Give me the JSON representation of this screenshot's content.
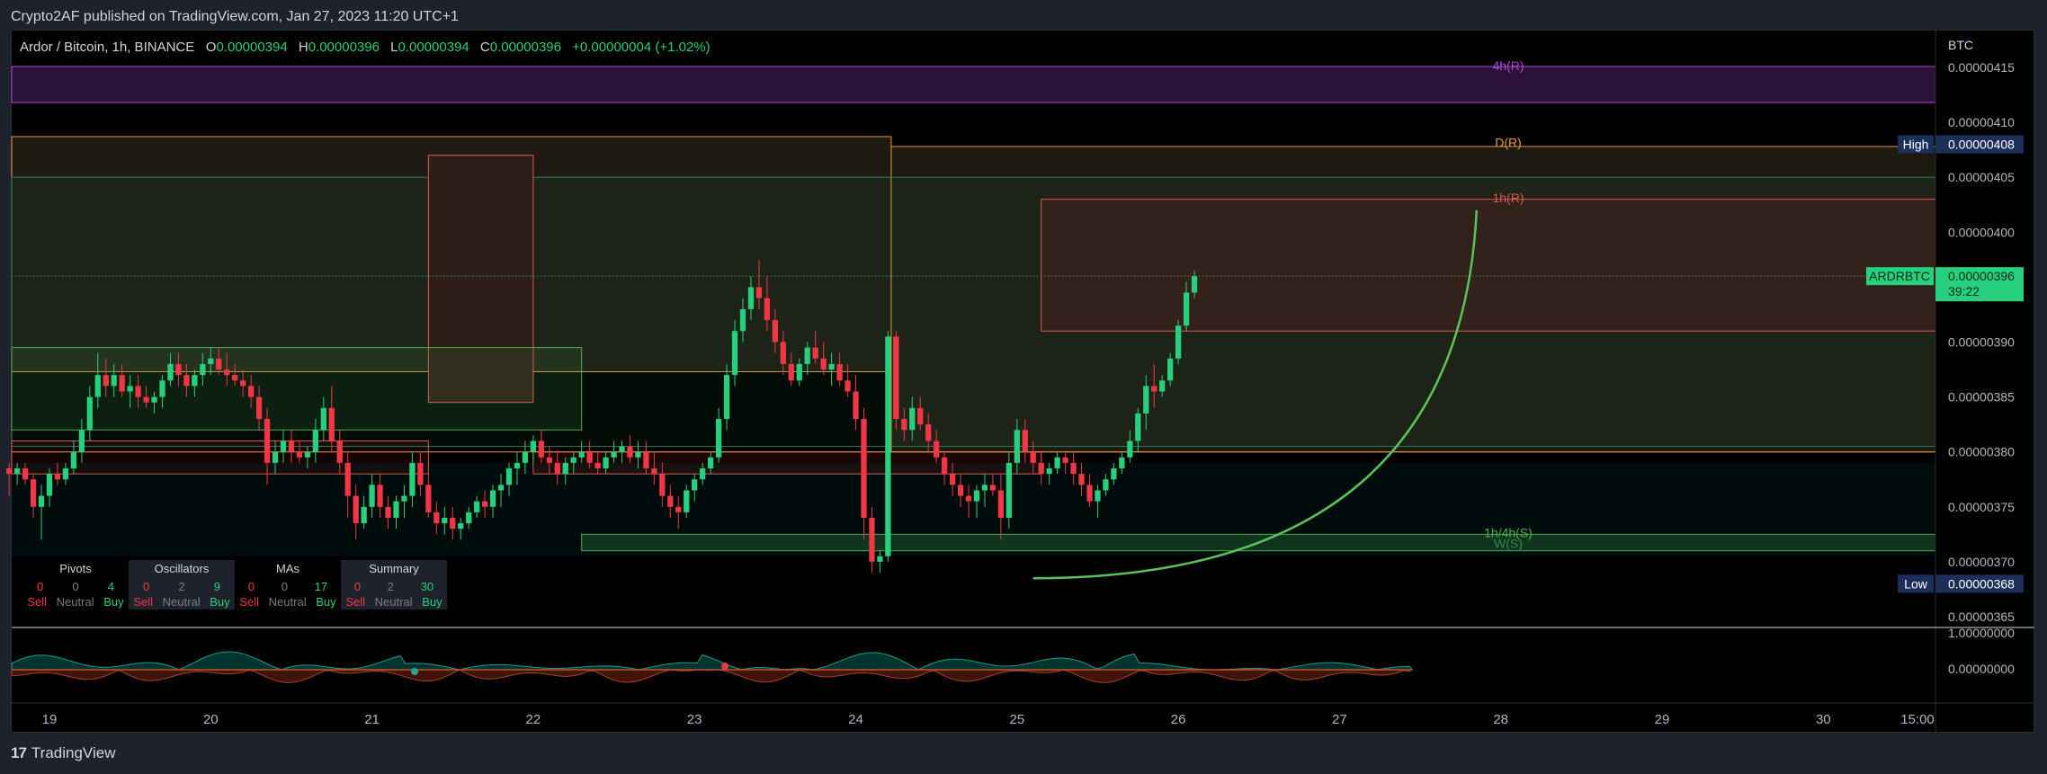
{
  "header": {
    "published": "Crypto2AF published on TradingView.com, Jan 27, 2023 11:20 UTC+1"
  },
  "legend": {
    "symbol": "Ardor / Bitcoin, 1h, BINANCE",
    "o_label": "O",
    "o": "0.00000394",
    "h_label": "H",
    "h": "0.00000396",
    "l_label": "L",
    "l": "0.00000394",
    "c_label": "C",
    "c": "0.00000396",
    "change": "+0.00000004 (+1.02%)"
  },
  "price_axis": {
    "currency": "BTC",
    "ticks": [
      "0.00000415",
      "0.00000410",
      "0.00000405",
      "0.00000400",
      "0.00000390",
      "0.00000385",
      "0.00000380",
      "0.00000375",
      "0.00000370",
      "0.00000365"
    ],
    "high_label": "High",
    "high_value": "0.00000408",
    "low_label": "Low",
    "low_value": "0.00000368",
    "last_symbol": "ARDRBTC",
    "last_value": "0.00000396",
    "countdown": "39:22"
  },
  "osc_axis": {
    "ticks": [
      "1.00000000",
      "0.00000000"
    ]
  },
  "time_axis": {
    "ticks": [
      "19",
      "20",
      "21",
      "22",
      "23",
      "24",
      "25",
      "26",
      "27",
      "28",
      "29",
      "30",
      "15:00"
    ]
  },
  "levels": {
    "r4h": "4h(R)",
    "rd": "D(R)",
    "r1h": "1h(R)",
    "s1h4h": "1h/4h(S)",
    "sw": "W(S)"
  },
  "ta_summary": [
    {
      "title": "Pivots",
      "sell": "0",
      "neutral": "0",
      "buy": "4"
    },
    {
      "title": "Oscillators",
      "sell": "0",
      "neutral": "2",
      "buy": "9"
    },
    {
      "title": "MAs",
      "sell": "0",
      "neutral": "0",
      "buy": "17"
    },
    {
      "title": "Summary",
      "sell": "0",
      "neutral": "2",
      "buy": "30"
    }
  ],
  "ta_labels": {
    "sell": "Sell",
    "neutral": "Neutral",
    "buy": "Buy"
  },
  "footer": {
    "brand": "TradingView"
  },
  "colors": {
    "up": "#26d07c",
    "down": "#f23645",
    "resistance_4h": "#b04ad8",
    "resistance_d": "#e59a3c",
    "resistance_1h": "#e2584e",
    "support": "#4caf50"
  },
  "chart_data": {
    "type": "candlestick",
    "interval": "1h",
    "x_start": 18.75,
    "ylim": [
      3.625e-06,
      4.175e-06
    ],
    "candles": [
      [
        3.785,
        3.79,
        3.76,
        3.78
      ],
      [
        3.78,
        3.79,
        3.77,
        3.785
      ],
      [
        3.785,
        3.79,
        3.77,
        3.775
      ],
      [
        3.775,
        3.78,
        3.74,
        3.75
      ],
      [
        3.75,
        3.77,
        3.72,
        3.76
      ],
      [
        3.76,
        3.785,
        3.75,
        3.78
      ],
      [
        3.78,
        3.79,
        3.77,
        3.775
      ],
      [
        3.775,
        3.79,
        3.77,
        3.785
      ],
      [
        3.785,
        3.81,
        3.78,
        3.8
      ],
      [
        3.8,
        3.83,
        3.79,
        3.82
      ],
      [
        3.82,
        3.86,
        3.81,
        3.85
      ],
      [
        3.85,
        3.89,
        3.84,
        3.87
      ],
      [
        3.87,
        3.885,
        3.85,
        3.86
      ],
      [
        3.86,
        3.88,
        3.85,
        3.87
      ],
      [
        3.87,
        3.88,
        3.85,
        3.855
      ],
      [
        3.855,
        3.87,
        3.84,
        3.86
      ],
      [
        3.86,
        3.87,
        3.84,
        3.85
      ],
      [
        3.85,
        3.86,
        3.84,
        3.845
      ],
      [
        3.845,
        3.855,
        3.835,
        3.85
      ],
      [
        3.85,
        3.87,
        3.84,
        3.865
      ],
      [
        3.865,
        3.89,
        3.86,
        3.88
      ],
      [
        3.88,
        3.89,
        3.86,
        3.87
      ],
      [
        3.87,
        3.88,
        3.85,
        3.86
      ],
      [
        3.86,
        3.875,
        3.85,
        3.87
      ],
      [
        3.87,
        3.89,
        3.86,
        3.88
      ],
      [
        3.88,
        3.895,
        3.87,
        3.885
      ],
      [
        3.885,
        3.895,
        3.87,
        3.875
      ],
      [
        3.875,
        3.89,
        3.86,
        3.87
      ],
      [
        3.87,
        3.88,
        3.86,
        3.865
      ],
      [
        3.865,
        3.875,
        3.85,
        3.86
      ],
      [
        3.86,
        3.87,
        3.84,
        3.85
      ],
      [
        3.85,
        3.86,
        3.82,
        3.83
      ],
      [
        3.83,
        3.84,
        3.77,
        3.79
      ],
      [
        3.79,
        3.81,
        3.78,
        3.8
      ],
      [
        3.8,
        3.82,
        3.79,
        3.81
      ],
      [
        3.81,
        3.82,
        3.79,
        3.8
      ],
      [
        3.8,
        3.81,
        3.79,
        3.795
      ],
      [
        3.795,
        3.805,
        3.785,
        3.8
      ],
      [
        3.8,
        3.83,
        3.79,
        3.82
      ],
      [
        3.82,
        3.85,
        3.81,
        3.84
      ],
      [
        3.84,
        3.86,
        3.8,
        3.81
      ],
      [
        3.81,
        3.82,
        3.78,
        3.79
      ],
      [
        3.79,
        3.8,
        3.74,
        3.76
      ],
      [
        3.76,
        3.77,
        3.72,
        3.735
      ],
      [
        3.735,
        3.76,
        3.73,
        3.75
      ],
      [
        3.75,
        3.78,
        3.74,
        3.77
      ],
      [
        3.77,
        3.78,
        3.74,
        3.75
      ],
      [
        3.75,
        3.76,
        3.73,
        3.74
      ],
      [
        3.74,
        3.76,
        3.73,
        3.755
      ],
      [
        3.755,
        3.77,
        3.74,
        3.76
      ],
      [
        3.76,
        3.8,
        3.75,
        3.79
      ],
      [
        3.79,
        3.8,
        3.76,
        3.77
      ],
      [
        3.77,
        3.78,
        3.74,
        3.745
      ],
      [
        3.745,
        3.755,
        3.725,
        3.735
      ],
      [
        3.735,
        3.75,
        3.725,
        3.74
      ],
      [
        3.74,
        3.75,
        3.72,
        3.73
      ],
      [
        3.73,
        3.74,
        3.72,
        3.735
      ],
      [
        3.735,
        3.75,
        3.73,
        3.745
      ],
      [
        3.745,
        3.76,
        3.74,
        3.755
      ],
      [
        3.755,
        3.765,
        3.74,
        3.75
      ],
      [
        3.75,
        3.77,
        3.74,
        3.765
      ],
      [
        3.765,
        3.78,
        3.75,
        3.77
      ],
      [
        3.77,
        3.79,
        3.76,
        3.785
      ],
      [
        3.785,
        3.8,
        3.77,
        3.79
      ],
      [
        3.79,
        3.81,
        3.78,
        3.8
      ],
      [
        3.8,
        3.815,
        3.79,
        3.81
      ],
      [
        3.81,
        3.82,
        3.79,
        3.795
      ],
      [
        3.795,
        3.805,
        3.78,
        3.79
      ],
      [
        3.79,
        3.8,
        3.77,
        3.78
      ],
      [
        3.78,
        3.795,
        3.77,
        3.79
      ],
      [
        3.79,
        3.8,
        3.78,
        3.795
      ],
      [
        3.795,
        3.81,
        3.79,
        3.8
      ],
      [
        3.8,
        3.81,
        3.785,
        3.79
      ],
      [
        3.79,
        3.8,
        3.78,
        3.785
      ],
      [
        3.785,
        3.8,
        3.78,
        3.795
      ],
      [
        3.795,
        3.81,
        3.79,
        3.8
      ],
      [
        3.8,
        3.81,
        3.79,
        3.805
      ],
      [
        3.805,
        3.815,
        3.79,
        3.795
      ],
      [
        3.795,
        3.81,
        3.785,
        3.8
      ],
      [
        3.8,
        3.81,
        3.78,
        3.785
      ],
      [
        3.785,
        3.8,
        3.77,
        3.78
      ],
      [
        3.78,
        3.79,
        3.75,
        3.76
      ],
      [
        3.76,
        3.77,
        3.74,
        3.75
      ],
      [
        3.75,
        3.76,
        3.73,
        3.745
      ],
      [
        3.745,
        3.77,
        3.74,
        3.765
      ],
      [
        3.765,
        3.78,
        3.755,
        3.775
      ],
      [
        3.775,
        3.79,
        3.77,
        3.785
      ],
      [
        3.785,
        3.8,
        3.78,
        3.795
      ],
      [
        3.795,
        3.84,
        3.79,
        3.83
      ],
      [
        3.83,
        3.88,
        3.82,
        3.87
      ],
      [
        3.87,
        3.92,
        3.86,
        3.91
      ],
      [
        3.91,
        3.94,
        3.9,
        3.93
      ],
      [
        3.93,
        3.96,
        3.92,
        3.95
      ],
      [
        3.95,
        3.975,
        3.93,
        3.94
      ],
      [
        3.94,
        3.96,
        3.91,
        3.92
      ],
      [
        3.92,
        3.93,
        3.89,
        3.9
      ],
      [
        3.9,
        3.91,
        3.87,
        3.88
      ],
      [
        3.88,
        3.89,
        3.86,
        3.865
      ],
      [
        3.865,
        3.885,
        3.86,
        3.88
      ],
      [
        3.88,
        3.9,
        3.87,
        3.895
      ],
      [
        3.895,
        3.91,
        3.88,
        3.885
      ],
      [
        3.885,
        3.9,
        3.87,
        3.875
      ],
      [
        3.875,
        3.89,
        3.86,
        3.88
      ],
      [
        3.88,
        3.89,
        3.86,
        3.865
      ],
      [
        3.865,
        3.88,
        3.85,
        3.855
      ],
      [
        3.855,
        3.87,
        3.82,
        3.83
      ],
      [
        3.83,
        3.84,
        3.72,
        3.74
      ],
      [
        3.74,
        3.75,
        3.69,
        3.7
      ],
      [
        3.7,
        3.71,
        3.69,
        3.705
      ],
      [
        3.705,
        3.91,
        3.7,
        3.905
      ],
      [
        3.905,
        3.91,
        3.82,
        3.83
      ],
      [
        3.83,
        3.84,
        3.81,
        3.82
      ],
      [
        3.82,
        3.85,
        3.81,
        3.84
      ],
      [
        3.84,
        3.85,
        3.82,
        3.825
      ],
      [
        3.825,
        3.835,
        3.8,
        3.81
      ],
      [
        3.81,
        3.82,
        3.79,
        3.795
      ],
      [
        3.795,
        3.8,
        3.77,
        3.78
      ],
      [
        3.78,
        3.79,
        3.76,
        3.77
      ],
      [
        3.77,
        3.78,
        3.75,
        3.76
      ],
      [
        3.76,
        3.77,
        3.74,
        3.755
      ],
      [
        3.755,
        3.77,
        3.74,
        3.765
      ],
      [
        3.765,
        3.78,
        3.75,
        3.77
      ],
      [
        3.77,
        3.78,
        3.76,
        3.765
      ],
      [
        3.765,
        3.78,
        3.72,
        3.74
      ],
      [
        3.74,
        3.8,
        3.73,
        3.79
      ],
      [
        3.79,
        3.83,
        3.78,
        3.82
      ],
      [
        3.82,
        3.83,
        3.79,
        3.8
      ],
      [
        3.8,
        3.81,
        3.78,
        3.79
      ],
      [
        3.79,
        3.8,
        3.77,
        3.78
      ],
      [
        3.78,
        3.79,
        3.77,
        3.785
      ],
      [
        3.785,
        3.8,
        3.78,
        3.795
      ],
      [
        3.795,
        3.8,
        3.78,
        3.79
      ],
      [
        3.79,
        3.8,
        3.77,
        3.78
      ],
      [
        3.78,
        3.79,
        3.76,
        3.77
      ],
      [
        3.77,
        3.78,
        3.75,
        3.755
      ],
      [
        3.755,
        3.77,
        3.74,
        3.765
      ],
      [
        3.765,
        3.78,
        3.76,
        3.775
      ],
      [
        3.775,
        3.79,
        3.77,
        3.785
      ],
      [
        3.785,
        3.8,
        3.78,
        3.795
      ],
      [
        3.795,
        3.82,
        3.79,
        3.81
      ],
      [
        3.81,
        3.84,
        3.8,
        3.835
      ],
      [
        3.835,
        3.87,
        3.82,
        3.86
      ],
      [
        3.86,
        3.88,
        3.84,
        3.855
      ],
      [
        3.855,
        3.87,
        3.85,
        3.865
      ],
      [
        3.865,
        3.89,
        3.86,
        3.885
      ],
      [
        3.885,
        3.92,
        3.88,
        3.915
      ],
      [
        3.915,
        3.955,
        3.91,
        3.945
      ],
      [
        3.945,
        3.965,
        3.94,
        3.96
      ]
    ],
    "levels": [
      {
        "name": "4h(R)",
        "value": 4.145
      },
      {
        "name": "D(R)",
        "value": 4.075
      },
      {
        "name": "1h(R)",
        "value": 4.025
      },
      {
        "name": "1h/4h(S)",
        "value": 3.72
      },
      {
        "name": "W(S)",
        "value": 3.71
      }
    ],
    "extrema": {
      "high": 4.08,
      "low": 3.68
    },
    "last_price": 3.96,
    "curve_start": {
      "t": 25.1,
      "price": 3.685
    },
    "curve_end": {
      "t": 27.85,
      "price": 4.02
    }
  }
}
